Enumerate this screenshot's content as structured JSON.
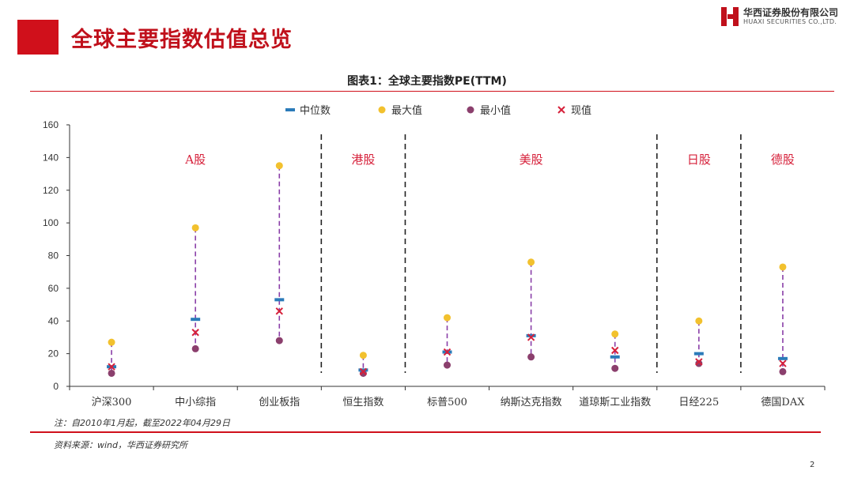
{
  "header": {
    "title": "全球主要指数估值总览",
    "logo_cn": "华西证券股份有限公司",
    "logo_en": "HUAXI SECURITIES CO.,LTD."
  },
  "chart_title": "图表1：全球主要指数PE(TTM)",
  "note": "注：自2010年1月起，截至2022年04月29日",
  "source": "资料来源：wind，华西证券研究所",
  "page_number": "2",
  "colors": {
    "brand_red": "#c0101b",
    "median": "#2b7bb9",
    "max": "#f2c12e",
    "min": "#8b3f6d",
    "current": "#d6203a",
    "range_line": "#8a3fa8",
    "group_label": "#d6203a"
  },
  "chart_data": {
    "type": "scatter",
    "title": "图表1：全球主要指数PE(TTM)",
    "ylim": [
      0,
      160
    ],
    "yticks": [
      0,
      20,
      40,
      60,
      80,
      100,
      120,
      140,
      160
    ],
    "categories": [
      "沪深300",
      "中小综指",
      "创业板指",
      "恒生指数",
      "标普500",
      "纳斯达克指数",
      "道琼斯工业指数",
      "日经225",
      "德国DAX"
    ],
    "series": [
      {
        "name": "中位数",
        "marker": "dash",
        "values": [
          12,
          41,
          53,
          10,
          21,
          31,
          18,
          20,
          17
        ]
      },
      {
        "name": "最大值",
        "marker": "dot",
        "values": [
          27,
          97,
          135,
          19,
          42,
          76,
          32,
          40,
          73
        ]
      },
      {
        "name": "最小值",
        "marker": "dot",
        "values": [
          8,
          23,
          28,
          8,
          13,
          18,
          11,
          14,
          9
        ]
      },
      {
        "name": "现值",
        "marker": "x",
        "values": [
          12,
          33,
          46,
          9,
          21,
          30,
          22,
          15,
          14
        ]
      }
    ],
    "groups": [
      {
        "label": "A股",
        "start": 0,
        "end": 2
      },
      {
        "label": "港股",
        "start": 3,
        "end": 3
      },
      {
        "label": "美股",
        "start": 4,
        "end": 6
      },
      {
        "label": "日股",
        "start": 7,
        "end": 7
      },
      {
        "label": "德股",
        "start": 8,
        "end": 8
      }
    ],
    "legend_position": "top-center",
    "grid": false
  }
}
